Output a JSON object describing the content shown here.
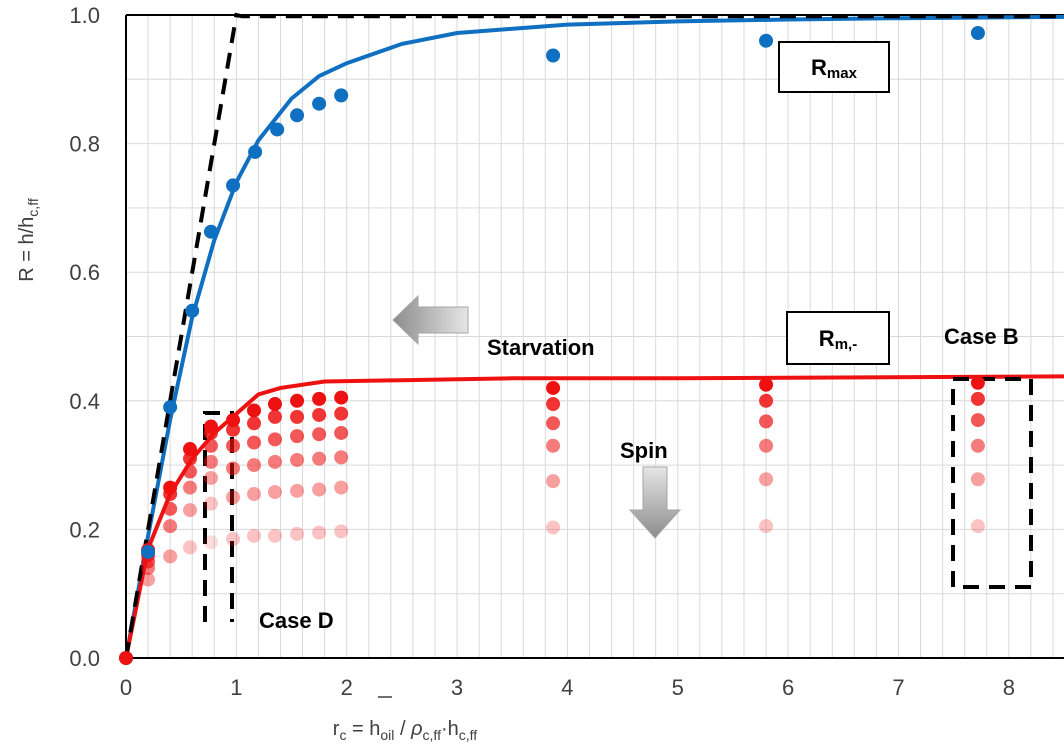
{
  "chart_data": {
    "type": "scatter",
    "xlabel": "r_c = h_oil / ρ̄_c,ff · h_c,ff",
    "ylabel": "R = h/h_c,ff",
    "xlim": [
      0,
      8.5
    ],
    "ylim": [
      0,
      1.0
    ],
    "x_ticks": [
      "0",
      "1",
      "2",
      "3",
      "4",
      "5",
      "6",
      "7",
      "8"
    ],
    "y_ticks": [
      "0.0",
      "0.2",
      "0.4",
      "0.6",
      "0.8",
      "1.0"
    ],
    "grid": true,
    "colors": {
      "blue": "#0f6fc0",
      "red": "#ee1111",
      "axis": "#000000",
      "grid": "#d9d9d9"
    },
    "series": [
      {
        "kind": "points",
        "color": "#0f6fc0",
        "x": [
          0,
          0.2,
          0.4,
          0.6,
          0.77,
          0.97,
          1.17,
          1.37,
          1.55,
          1.75,
          1.95,
          3.87,
          5.8,
          7.72
        ],
        "y": [
          0,
          0.165,
          0.39,
          0.54,
          0.663,
          0.735,
          0.787,
          0.822,
          0.844,
          0.862,
          0.875,
          0.937,
          0.96,
          0.972
        ]
      },
      {
        "kind": "fit",
        "color": "#0f6fc0",
        "x": [
          0,
          0.2,
          0.4,
          0.6,
          0.8,
          1.0,
          1.2,
          1.5,
          1.75,
          2.0,
          2.5,
          3.0,
          4.0,
          5.0,
          6.0,
          7.0,
          8.5
        ],
        "y": [
          0,
          0.19,
          0.37,
          0.53,
          0.65,
          0.74,
          0.805,
          0.87,
          0.905,
          0.925,
          0.955,
          0.972,
          0.985,
          0.99,
          0.993,
          0.995,
          0.997
        ]
      },
      {
        "kind": "fit",
        "color": "#ee1111",
        "x": [
          0,
          0.2,
          0.4,
          0.6,
          0.8,
          1.0,
          1.2,
          1.4,
          1.8,
          2.5,
          3.5,
          5.0,
          8.5
        ],
        "y": [
          0,
          0.17,
          0.255,
          0.31,
          0.35,
          0.38,
          0.41,
          0.42,
          0.43,
          0.432,
          0.435,
          0.435,
          0.438
        ]
      },
      {
        "kind": "limit-dashed",
        "color": "#000000",
        "x": [
          0,
          1.0,
          1.05,
          8.5
        ],
        "y": [
          0,
          1.0,
          0.998,
          0.998
        ]
      }
    ],
    "red_points": {
      "color": "#ee1111",
      "columns": [
        {
          "x": 0.2,
          "y": [
            0.168,
            0.16,
            0.15,
            0.14,
            0.122
          ]
        },
        {
          "x": 0.4,
          "y": [
            0.265,
            0.255,
            0.232,
            0.205,
            0.158
          ]
        },
        {
          "x": 0.58,
          "y": [
            0.325,
            0.31,
            0.29,
            0.265,
            0.23,
            0.172
          ]
        },
        {
          "x": 0.77,
          "y": [
            0.36,
            0.35,
            0.33,
            0.305,
            0.28,
            0.24,
            0.18
          ]
        },
        {
          "x": 0.97,
          "y": [
            0.37,
            0.355,
            0.33,
            0.295,
            0.25,
            0.185
          ]
        },
        {
          "x": 1.16,
          "y": [
            0.385,
            0.365,
            0.335,
            0.3,
            0.255,
            0.19
          ]
        },
        {
          "x": 1.35,
          "y": [
            0.395,
            0.375,
            0.34,
            0.305,
            0.258,
            0.19
          ]
        },
        {
          "x": 1.55,
          "y": [
            0.4,
            0.375,
            0.345,
            0.308,
            0.26,
            0.193
          ]
        },
        {
          "x": 1.75,
          "y": [
            0.403,
            0.378,
            0.348,
            0.31,
            0.262,
            0.195
          ]
        },
        {
          "x": 1.95,
          "y": [
            0.405,
            0.38,
            0.35,
            0.312,
            0.265,
            0.197
          ]
        },
        {
          "x": 3.87,
          "y": [
            0.42,
            0.395,
            0.365,
            0.33,
            0.275,
            0.203
          ]
        },
        {
          "x": 5.8,
          "y": [
            0.425,
            0.4,
            0.368,
            0.33,
            0.278,
            0.205
          ]
        },
        {
          "x": 7.72,
          "y": [
            0.428,
            0.403,
            0.37,
            0.33,
            0.278,
            0.205
          ]
        }
      ],
      "opacities": [
        1.0,
        0.85,
        0.7,
        0.55,
        0.4,
        0.25,
        0.15
      ]
    },
    "annotations": {
      "rmax": "Rmax",
      "rm": "Rm,-",
      "starvation": "Starvation",
      "spin": "Spin",
      "case_b": "Case B",
      "case_d": "Case D"
    }
  }
}
